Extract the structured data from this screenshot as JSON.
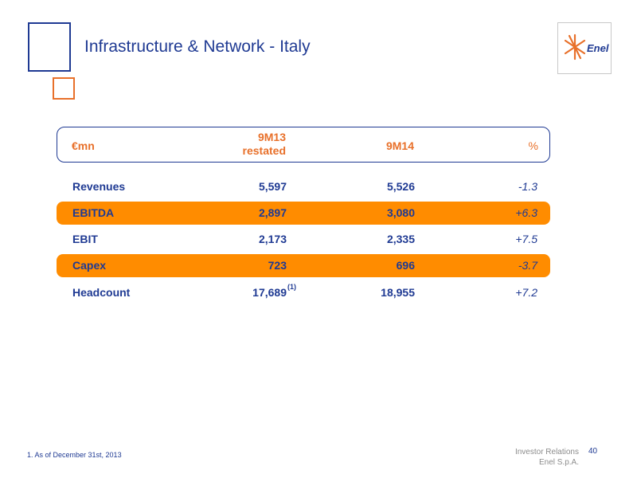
{
  "slide": {
    "title": "Infrastructure & Network - Italy",
    "logo_text": "Enel"
  },
  "table": {
    "header": {
      "label": "€mn",
      "col1_line1": "9M13",
      "col1_line2": "restated",
      "col2": "9M14",
      "col3": "%"
    },
    "rows": [
      {
        "label": "Revenues",
        "v1": "5,597",
        "v2": "5,526",
        "pct": "-1.3",
        "highlight": false
      },
      {
        "label": "EBITDA",
        "v1": "2,897",
        "v2": "3,080",
        "pct": "+6.3",
        "highlight": true
      },
      {
        "label": "EBIT",
        "v1": "2,173",
        "v2": "2,335",
        "pct": "+7.5",
        "highlight": false
      },
      {
        "label": "Capex",
        "v1": "723",
        "v2": "696",
        "pct": "-3.7",
        "highlight": true
      },
      {
        "label": "Headcount",
        "v1": "17,689",
        "v1_note": "(1)",
        "v2": "18,955",
        "pct": "+7.2",
        "highlight": false
      }
    ]
  },
  "footer": {
    "footnote": "1. As of December 31st, 2013",
    "ir_line1": "Investor Relations",
    "ir_line2": "Enel S.p.A.",
    "page": "40"
  },
  "colors": {
    "primary_blue": "#1f3a93",
    "accent_orange": "#ff8c00"
  }
}
